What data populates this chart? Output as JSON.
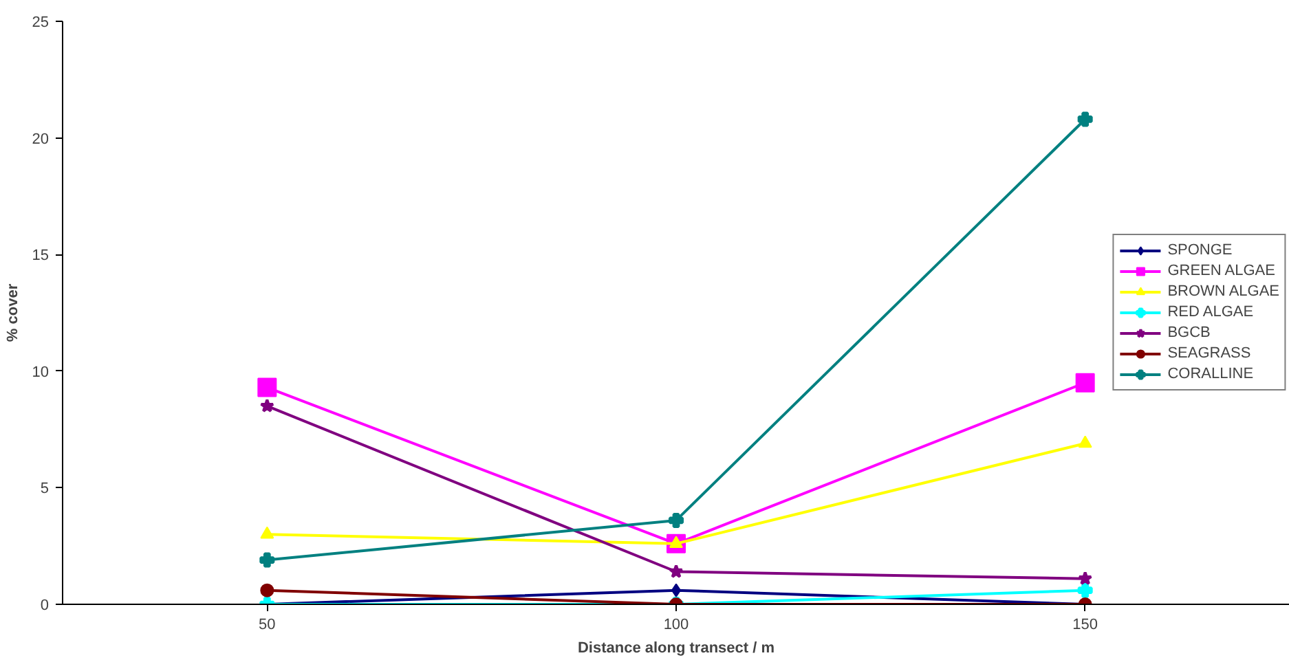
{
  "chart_data": {
    "type": "line",
    "xlabel": "Distance along transect / m",
    "ylabel": "% cover",
    "categories": [
      "50",
      "100",
      "150"
    ],
    "ylim": [
      0,
      25
    ],
    "yticks": [
      0,
      5,
      10,
      15,
      20,
      25
    ],
    "grid": false,
    "legend": "right",
    "line_style": "solid",
    "series": [
      {
        "name": "SPONGE",
        "color": "#000080",
        "marker": "diamond",
        "values": [
          0,
          0.6,
          0
        ]
      },
      {
        "name": "GREEN ALGAE",
        "color": "#ff00ff",
        "marker": "square",
        "values": [
          9.3,
          2.6,
          9.5
        ]
      },
      {
        "name": "BROWN ALGAE",
        "color": "#ffff00",
        "marker": "triangle",
        "values": [
          3.0,
          2.6,
          6.9
        ]
      },
      {
        "name": "RED ALGAE",
        "color": "#00ffff",
        "marker": "cross",
        "values": [
          0,
          0,
          0.6
        ]
      },
      {
        "name": "BGCB",
        "color": "#800080",
        "marker": "star",
        "values": [
          8.5,
          1.4,
          1.1
        ]
      },
      {
        "name": "SEAGRASS",
        "color": "#800000",
        "marker": "circle",
        "values": [
          0.6,
          0,
          0
        ]
      },
      {
        "name": "CORALLINE",
        "color": "#008080",
        "marker": "cross",
        "values": [
          1.9,
          3.6,
          20.8
        ]
      }
    ]
  }
}
